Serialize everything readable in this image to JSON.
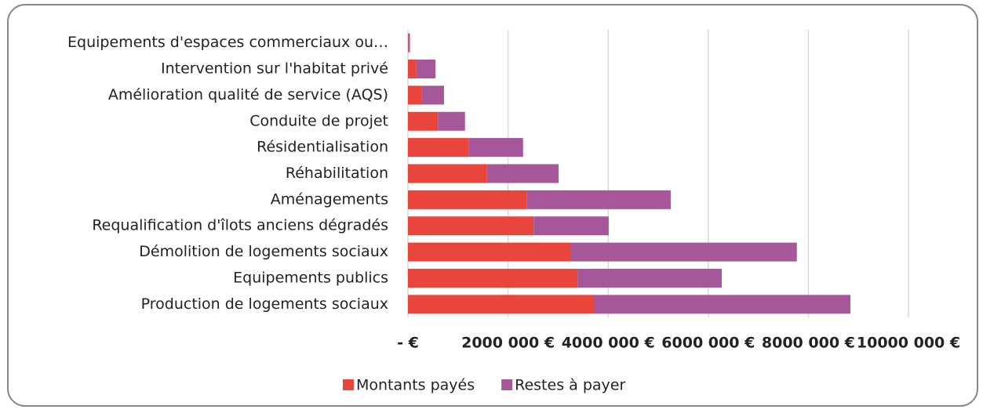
{
  "chart_data": {
    "type": "stacked-barh",
    "categories": [
      "Equipements d'espaces commerciaux ou…",
      "Intervention sur l'habitat privé",
      "Amélioration qualité de service (AQS)",
      "Conduite de projet",
      "Résidentialisation",
      "Réhabilitation",
      "Aménagements",
      "Requalification d'îlots anciens dégradés",
      "Démolition de logements sociaux",
      "Equipements publics",
      "Production de logements sociaux"
    ],
    "series": [
      {
        "name": "Montants payés",
        "color": "#e8453c",
        "values": [
          10000,
          170000,
          280000,
          600000,
          1220000,
          1580000,
          2370000,
          2510000,
          3260000,
          3390000,
          3730000
        ]
      },
      {
        "name": "Restes à payer",
        "color": "#a5579a",
        "values": [
          30000,
          380000,
          440000,
          540000,
          1080000,
          1430000,
          2880000,
          1500000,
          4510000,
          2880000,
          5110000
        ]
      }
    ],
    "xlim": [
      0,
      10000000
    ],
    "xticks": [
      {
        "value": 0,
        "label": "-   €"
      },
      {
        "value": 2000000,
        "label": "2000 000 €"
      },
      {
        "value": 4000000,
        "label": "4000 000 €"
      },
      {
        "value": 6000000,
        "label": "6000 000 €"
      },
      {
        "value": 8000000,
        "label": "8000 000 €"
      },
      {
        "value": 10000000,
        "label": "10000 000 €"
      }
    ],
    "grid": true,
    "legend": "bottom"
  }
}
